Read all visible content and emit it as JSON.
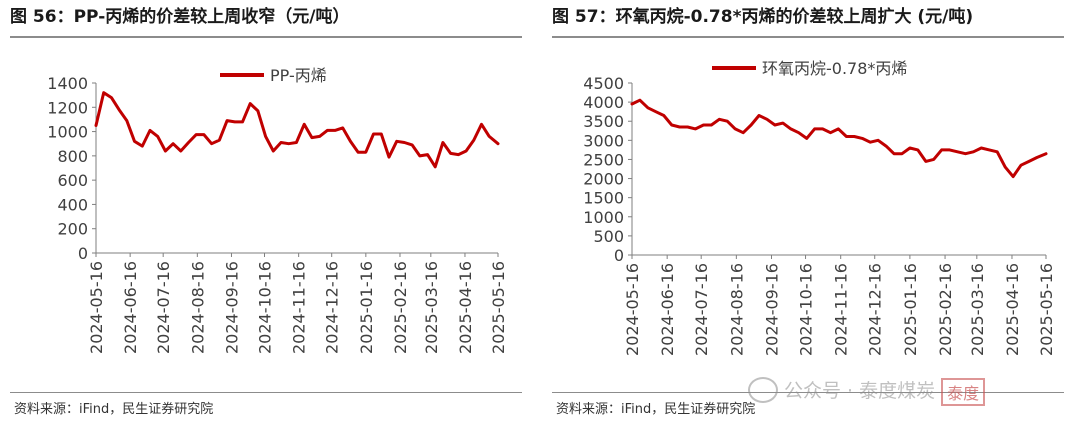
{
  "colors": {
    "series": "#c00000",
    "axis": "#7f7f7f",
    "text": "#404040"
  },
  "chart_data": [
    {
      "type": "line",
      "title": "图 56：PP-丙烯的价差较上周收窄（元/吨）",
      "legend": {
        "position": "top-center"
      },
      "grid": false,
      "ylim": [
        0,
        1400
      ],
      "y_ticks": [
        0,
        200,
        400,
        600,
        800,
        1000,
        1200,
        1400
      ],
      "x_ticks": [
        "2024-05-16",
        "2024-06-16",
        "2024-07-16",
        "2024-08-16",
        "2024-09-16",
        "2024-10-16",
        "2024-11-16",
        "2024-12-16",
        "2025-01-16",
        "2025-02-16",
        "2025-03-16",
        "2025-04-16",
        "2025-05-16"
      ],
      "series": [
        {
          "name": "PP-丙烯",
          "x": [
            "2024-05-16",
            "2024-05-23",
            "2024-05-30",
            "2024-06-06",
            "2024-06-13",
            "2024-06-20",
            "2024-06-27",
            "2024-07-04",
            "2024-07-11",
            "2024-07-18",
            "2024-07-25",
            "2024-08-01",
            "2024-08-08",
            "2024-08-15",
            "2024-08-22",
            "2024-08-29",
            "2024-09-05",
            "2024-09-12",
            "2024-09-19",
            "2024-09-26",
            "2024-10-03",
            "2024-10-10",
            "2024-10-17",
            "2024-10-24",
            "2024-10-31",
            "2024-11-07",
            "2024-11-14",
            "2024-11-21",
            "2024-11-28",
            "2024-12-05",
            "2024-12-12",
            "2024-12-19",
            "2024-12-26",
            "2025-01-02",
            "2025-01-09",
            "2025-01-16",
            "2025-01-23",
            "2025-01-30",
            "2025-02-06",
            "2025-02-13",
            "2025-02-20",
            "2025-02-27",
            "2025-03-06",
            "2025-03-13",
            "2025-03-20",
            "2025-03-27",
            "2025-04-03",
            "2025-04-10",
            "2025-04-17",
            "2025-04-24",
            "2025-05-01",
            "2025-05-08",
            "2025-05-16"
          ],
          "values": [
            1050,
            1320,
            1280,
            1180,
            1090,
            920,
            880,
            1010,
            960,
            840,
            900,
            840,
            910,
            975,
            975,
            900,
            930,
            1090,
            1080,
            1080,
            1230,
            1170,
            960,
            840,
            910,
            900,
            910,
            1060,
            950,
            960,
            1010,
            1010,
            1030,
            920,
            830,
            830,
            980,
            980,
            790,
            920,
            910,
            890,
            800,
            810,
            710,
            910,
            820,
            810,
            840,
            930,
            1060,
            960,
            900
          ]
        }
      ]
    },
    {
      "type": "line",
      "title": "图 57：环氧丙烷-0.78*丙烯的价差较上周扩大 (元/吨)",
      "legend": {
        "position": "top-center"
      },
      "grid": false,
      "ylim": [
        0,
        4500
      ],
      "y_ticks": [
        0,
        500,
        1000,
        1500,
        2000,
        2500,
        3000,
        3500,
        4000,
        4500
      ],
      "x_ticks": [
        "2024-05-16",
        "2024-06-16",
        "2024-07-16",
        "2024-08-16",
        "2024-09-16",
        "2024-10-16",
        "2024-11-16",
        "2024-12-16",
        "2025-01-16",
        "2025-02-16",
        "2025-03-16",
        "2025-04-16",
        "2025-05-16"
      ],
      "series": [
        {
          "name": "环氧丙烷-0.78*丙烯",
          "x": [
            "2024-05-16",
            "2024-05-23",
            "2024-05-30",
            "2024-06-06",
            "2024-06-13",
            "2024-06-20",
            "2024-06-27",
            "2024-07-04",
            "2024-07-11",
            "2024-07-18",
            "2024-07-25",
            "2024-08-01",
            "2024-08-08",
            "2024-08-15",
            "2024-08-22",
            "2024-08-29",
            "2024-09-05",
            "2024-09-12",
            "2024-09-19",
            "2024-09-26",
            "2024-10-03",
            "2024-10-10",
            "2024-10-17",
            "2024-10-24",
            "2024-10-31",
            "2024-11-07",
            "2024-11-14",
            "2024-11-21",
            "2024-11-28",
            "2024-12-05",
            "2024-12-12",
            "2024-12-19",
            "2024-12-26",
            "2025-01-02",
            "2025-01-09",
            "2025-01-16",
            "2025-01-23",
            "2025-01-30",
            "2025-02-06",
            "2025-02-13",
            "2025-02-20",
            "2025-02-27",
            "2025-03-06",
            "2025-03-13",
            "2025-03-20",
            "2025-03-27",
            "2025-04-03",
            "2025-04-10",
            "2025-04-17",
            "2025-04-24",
            "2025-05-01",
            "2025-05-08",
            "2025-05-16"
          ],
          "values": [
            3950,
            4050,
            3850,
            3750,
            3650,
            3400,
            3350,
            3350,
            3300,
            3400,
            3400,
            3550,
            3500,
            3300,
            3200,
            3400,
            3650,
            3550,
            3400,
            3450,
            3300,
            3200,
            3050,
            3300,
            3300,
            3200,
            3300,
            3100,
            3100,
            3050,
            2950,
            3000,
            2850,
            2650,
            2650,
            2800,
            2750,
            2450,
            2500,
            2750,
            2750,
            2700,
            2650,
            2700,
            2800,
            2750,
            2700,
            2300,
            2050,
            2350,
            2450,
            2550,
            2650
          ]
        }
      ]
    }
  ],
  "left": {
    "title": "图 56：PP-丙烯的价差较上周收窄（元/吨）",
    "source": "资料来源：iFind，民生证券研究院"
  },
  "right": {
    "title": "图 57：环氧丙烷-0.78*丙烯的价差较上周扩大 (元/吨)",
    "source": "资料来源：iFind，民生证券研究院"
  },
  "watermark": {
    "text": "公众号 · 泰度煤炭",
    "seal": "泰度"
  }
}
